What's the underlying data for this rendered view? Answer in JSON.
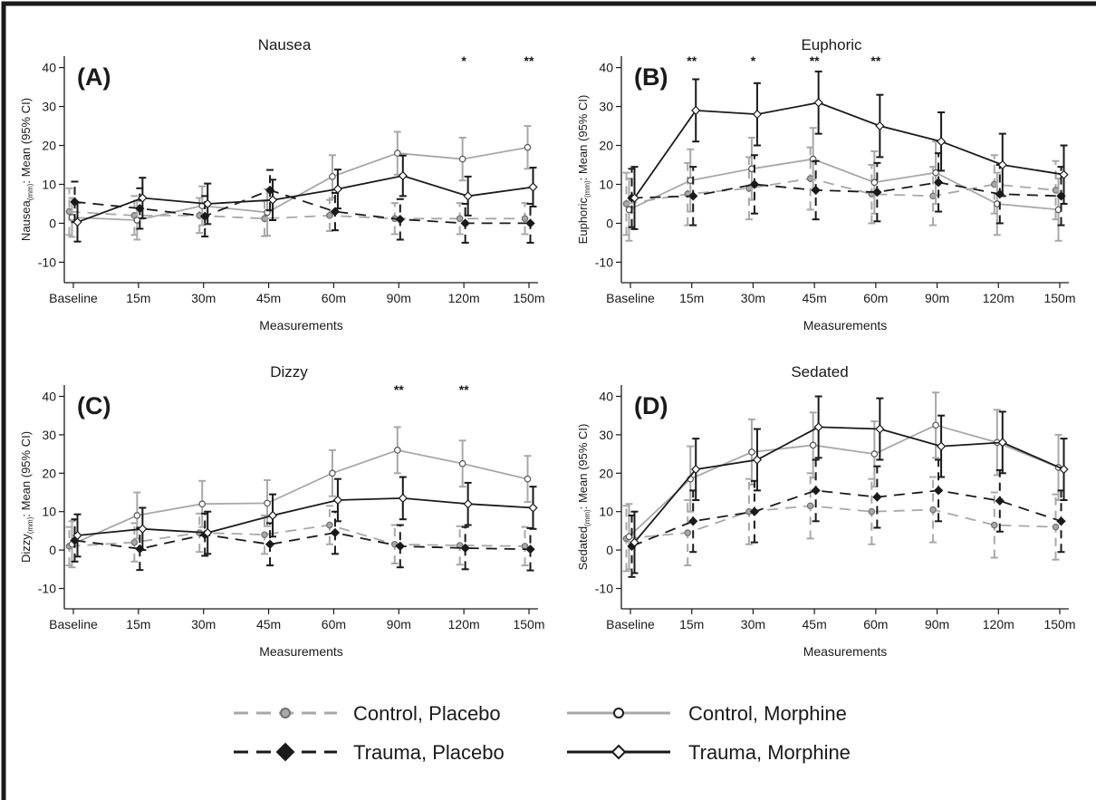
{
  "colors": {
    "control": "#a8a8a8",
    "trauma": "#1a1a1a",
    "border": "#1a1a1a"
  },
  "x_title": "Measurements",
  "legend": [
    {
      "label": "Control, Placebo",
      "group": "control",
      "dashed": true,
      "marker": "circle-filled"
    },
    {
      "label": "Control, Morphine",
      "group": "control",
      "dashed": false,
      "marker": "circle-open"
    },
    {
      "label": "Trauma, Placebo",
      "group": "trauma",
      "dashed": true,
      "marker": "diamond-filled"
    },
    {
      "label": "Trauma, Morphine",
      "group": "trauma",
      "dashed": false,
      "marker": "diamond-open"
    }
  ],
  "chart_data": [
    {
      "type": "line",
      "panel_label": "(A)",
      "title": "Nausea",
      "ylabel_main": "Nausea",
      "ylabel_sub": "(mm)",
      "ylabel_rest": ": Mean (95% CI)",
      "xlabel": "Measurements",
      "categories": [
        "Baseline",
        "15m",
        "30m",
        "45m",
        "60m",
        "90m",
        "120m",
        "150m"
      ],
      "ylim": [
        -12,
        42
      ],
      "yticks": [
        -10,
        0,
        10,
        20,
        30,
        40
      ],
      "grid": false,
      "significance": [
        {
          "index": 6,
          "label": "*"
        },
        {
          "index": 7,
          "label": "**"
        }
      ],
      "series": [
        {
          "name": "Control, Placebo",
          "values": [
            3,
            2,
            2,
            1.2,
            2,
            1.2,
            1.2,
            1.2
          ],
          "ci": [
            6,
            5,
            4.5,
            4.5,
            4,
            4,
            4,
            4
          ]
        },
        {
          "name": "Control, Morphine",
          "values": [
            1.5,
            0.8,
            4.5,
            2.8,
            12,
            18,
            16.5,
            19.5
          ],
          "ci": [
            5,
            5,
            5,
            6,
            5.5,
            5.5,
            5.5,
            5.5
          ]
        },
        {
          "name": "Trauma, Placebo",
          "values": [
            5.5,
            3.8,
            1.8,
            8.5,
            3,
            1,
            0,
            0
          ],
          "ci": [
            5.2,
            5.2,
            5.2,
            5.2,
            4.8,
            5.2,
            5,
            5
          ]
        },
        {
          "name": "Trauma, Morphine",
          "values": [
            0.3,
            6.5,
            5,
            6,
            8.8,
            12.2,
            7,
            9.3
          ],
          "ci": [
            5,
            5.2,
            5.2,
            5.2,
            5,
            5.2,
            5,
            5
          ]
        }
      ]
    },
    {
      "type": "line",
      "panel_label": "(B)",
      "title": "Euphoric",
      "ylabel_main": "Euphoric",
      "ylabel_sub": "(mm)",
      "ylabel_rest": ": Mean (95% CI)",
      "xlabel": "Measurements",
      "categories": [
        "Baseline",
        "15m",
        "30m",
        "45m",
        "60m",
        "90m",
        "120m",
        "150m"
      ],
      "ylim": [
        -12,
        42
      ],
      "yticks": [
        -10,
        0,
        10,
        20,
        30,
        40
      ],
      "grid": false,
      "significance": [
        {
          "index": 1,
          "label": "**"
        },
        {
          "index": 2,
          "label": "*"
        },
        {
          "index": 3,
          "label": "**"
        },
        {
          "index": 4,
          "label": "**"
        }
      ],
      "series": [
        {
          "name": "Control, Placebo",
          "values": [
            5,
            7.5,
            9,
            11.5,
            7.5,
            7,
            10,
            8.5
          ],
          "ci": [
            8,
            8,
            8,
            8,
            7.5,
            7.5,
            7.5,
            7.5
          ]
        },
        {
          "name": "Control, Morphine",
          "values": [
            3.5,
            11,
            14,
            16.5,
            10.5,
            13,
            5,
            3.5
          ],
          "ci": [
            8,
            8,
            8,
            8,
            8,
            8,
            8,
            8
          ]
        },
        {
          "name": "Trauma, Placebo",
          "values": [
            6.5,
            7,
            10,
            8.5,
            8,
            10.5,
            7.5,
            7
          ],
          "ci": [
            7.5,
            7.5,
            7.5,
            7.5,
            7.5,
            7.5,
            7.5,
            7.5
          ]
        },
        {
          "name": "Trauma, Morphine",
          "values": [
            6.5,
            29,
            28,
            31,
            25,
            21,
            15,
            12.5
          ],
          "ci": [
            8,
            8,
            8,
            8,
            8,
            7.5,
            8,
            7.5
          ]
        }
      ]
    },
    {
      "type": "line",
      "panel_label": "(C)",
      "title": "Dizzy",
      "ylabel_main": "Dizzy",
      "ylabel_sub": "(mm)",
      "ylabel_rest": ": Mean (95% CI)",
      "xlabel": "Measurements",
      "categories": [
        "Baseline",
        "15m",
        "30m",
        "45m",
        "60m",
        "90m",
        "120m",
        "150m"
      ],
      "ylim": [
        -12,
        42
      ],
      "yticks": [
        -10,
        0,
        10,
        20,
        30,
        40
      ],
      "grid": false,
      "significance": [
        {
          "index": 5,
          "label": "**"
        },
        {
          "index": 6,
          "label": "**"
        }
      ],
      "series": [
        {
          "name": "Control, Placebo",
          "values": [
            1,
            2,
            4.5,
            4,
            6.5,
            1.5,
            1.2,
            1
          ],
          "ci": [
            5,
            5,
            5,
            5,
            5,
            5,
            5,
            5
          ]
        },
        {
          "name": "Control, Morphine",
          "values": [
            1.5,
            9,
            12,
            12.2,
            20,
            26,
            22.5,
            18.5
          ],
          "ci": [
            6,
            6,
            6,
            6,
            6,
            6,
            6,
            6
          ]
        },
        {
          "name": "Trauma, Placebo",
          "values": [
            2.5,
            0.3,
            4,
            1.5,
            4.5,
            1,
            0.5,
            0.2
          ],
          "ci": [
            5.5,
            5.5,
            5.5,
            5.5,
            5.5,
            5.5,
            5.5,
            5.5
          ]
        },
        {
          "name": "Trauma, Morphine",
          "values": [
            3.8,
            5.5,
            4.5,
            9,
            13,
            13.5,
            12,
            11
          ],
          "ci": [
            5.5,
            5.5,
            5.5,
            5.5,
            5.5,
            5.5,
            5.5,
            5.5
          ]
        }
      ]
    },
    {
      "type": "line",
      "panel_label": "(D)",
      "title": "Sedated",
      "ylabel_main": "Sedated",
      "ylabel_sub": "(mm)",
      "ylabel_rest": ": Mean (95% CI)",
      "xlabel": "Measurements",
      "categories": [
        "Baseline",
        "15m",
        "30m",
        "45m",
        "60m",
        "90m",
        "120m",
        "150m"
      ],
      "ylim": [
        -12,
        42
      ],
      "yticks": [
        -10,
        0,
        10,
        20,
        30,
        40
      ],
      "grid": false,
      "significance": [],
      "series": [
        {
          "name": "Control, Placebo",
          "values": [
            3,
            4.5,
            10,
            11.5,
            10,
            10.5,
            6.5,
            6
          ],
          "ci": [
            8.5,
            8.5,
            8.5,
            8.5,
            8.5,
            8.5,
            8.5,
            8.5
          ]
        },
        {
          "name": "Control, Morphine",
          "values": [
            3.5,
            18.5,
            25.5,
            27.3,
            25,
            32.5,
            28,
            21.5
          ],
          "ci": [
            8.5,
            8.5,
            8.5,
            8.5,
            8.5,
            8.5,
            8.5,
            8.5
          ]
        },
        {
          "name": "Trauma, Placebo",
          "values": [
            1,
            7.5,
            10,
            15.5,
            13.8,
            15.5,
            12.8,
            7.5
          ],
          "ci": [
            8,
            8,
            8,
            8,
            8,
            8,
            8,
            8
          ]
        },
        {
          "name": "Trauma, Morphine",
          "values": [
            2,
            21,
            23.5,
            32,
            31.5,
            27,
            28,
            21
          ],
          "ci": [
            8,
            8,
            8,
            8,
            8,
            8,
            8,
            8
          ]
        }
      ]
    }
  ]
}
